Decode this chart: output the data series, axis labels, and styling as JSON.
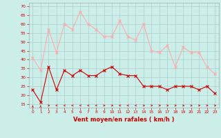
{
  "hours": [
    0,
    1,
    2,
    3,
    4,
    5,
    6,
    7,
    8,
    9,
    10,
    11,
    12,
    13,
    14,
    15,
    16,
    17,
    18,
    19,
    20,
    21,
    22,
    23
  ],
  "wind_avg": [
    23,
    16,
    36,
    23,
    34,
    31,
    34,
    31,
    31,
    34,
    36,
    32,
    31,
    31,
    25,
    25,
    25,
    23,
    25,
    25,
    25,
    23,
    25,
    21
  ],
  "wind_gust": [
    41,
    34,
    57,
    44,
    60,
    57,
    67,
    60,
    57,
    53,
    53,
    62,
    53,
    51,
    60,
    45,
    44,
    48,
    36,
    47,
    44,
    44,
    36,
    32
  ],
  "wind_avg_color": "#cc0000",
  "wind_gust_color": "#ffaaaa",
  "bg_color": "#cceee8",
  "grid_color": "#aacccc",
  "xlabel": "Vent moyen/en rafales ( km/h )",
  "xlabel_color": "#cc0000",
  "yticks": [
    15,
    20,
    25,
    30,
    35,
    40,
    45,
    50,
    55,
    60,
    65,
    70
  ],
  "ylim": [
    13,
    72
  ],
  "xlim": [
    -0.5,
    23.5
  ],
  "arrow_dirs": [
    90,
    90,
    0,
    225,
    225,
    225,
    225,
    225,
    225,
    0,
    0,
    225,
    225,
    225,
    0,
    0,
    0,
    0,
    0,
    0,
    0,
    0,
    0,
    0
  ]
}
